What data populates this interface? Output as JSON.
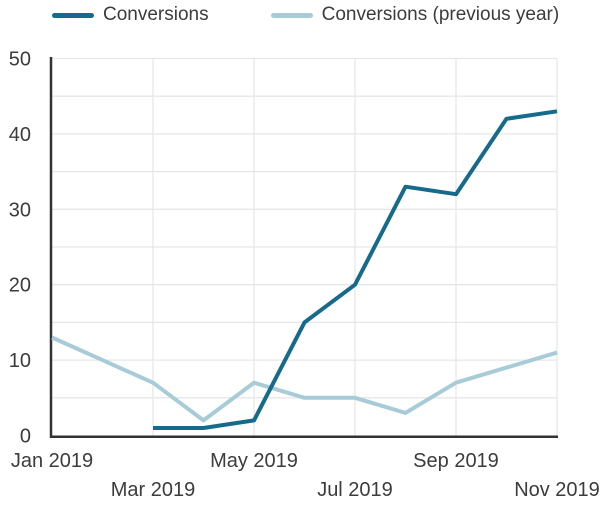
{
  "legend": {
    "items": [
      {
        "label": "Conversions",
        "color": "#166b8a"
      },
      {
        "label": "Conversions (previous year)",
        "color": "#a8cbd8"
      }
    ]
  },
  "chart_data": {
    "type": "line",
    "title": "",
    "xlabel": "",
    "ylabel": "",
    "x": [
      "Jan 2019",
      "Feb 2019",
      "Mar 2019",
      "Apr 2019",
      "May 2019",
      "Jun 2019",
      "Jul 2019",
      "Aug 2019",
      "Sep 2019",
      "Oct 2019",
      "Nov 2019"
    ],
    "series": [
      {
        "name": "Conversions",
        "color": "#166b8a",
        "values": [
          null,
          null,
          1,
          1,
          2,
          15,
          20,
          33,
          32,
          42,
          43
        ]
      },
      {
        "name": "Conversions (previous year)",
        "color": "#a8cbd8",
        "values": [
          13,
          10,
          7,
          2,
          7,
          5,
          5,
          3,
          7,
          9,
          11
        ]
      }
    ],
    "ylim": [
      0,
      50
    ],
    "y_ticks": [
      0,
      10,
      20,
      30,
      40,
      50
    ],
    "x_tick_labels": [
      {
        "label": "Jan 2019",
        "index": 0,
        "row": 1
      },
      {
        "label": "Mar 2019",
        "index": 2,
        "row": 2
      },
      {
        "label": "May 2019",
        "index": 4,
        "row": 1
      },
      {
        "label": "Jul 2019",
        "index": 6,
        "row": 2
      },
      {
        "label": "Sep 2019",
        "index": 8,
        "row": 1
      },
      {
        "label": "Nov 2019",
        "index": 10,
        "row": 2
      }
    ],
    "grid": {
      "on": true,
      "horizontal_step": 5,
      "vertical_at_indices": [
        2,
        4,
        6,
        8,
        10
      ],
      "color": "#e7e7e7"
    },
    "axis_color": "#333333",
    "text_color": "#3c3c3c",
    "legend_position": "top",
    "line_width": 4
  }
}
